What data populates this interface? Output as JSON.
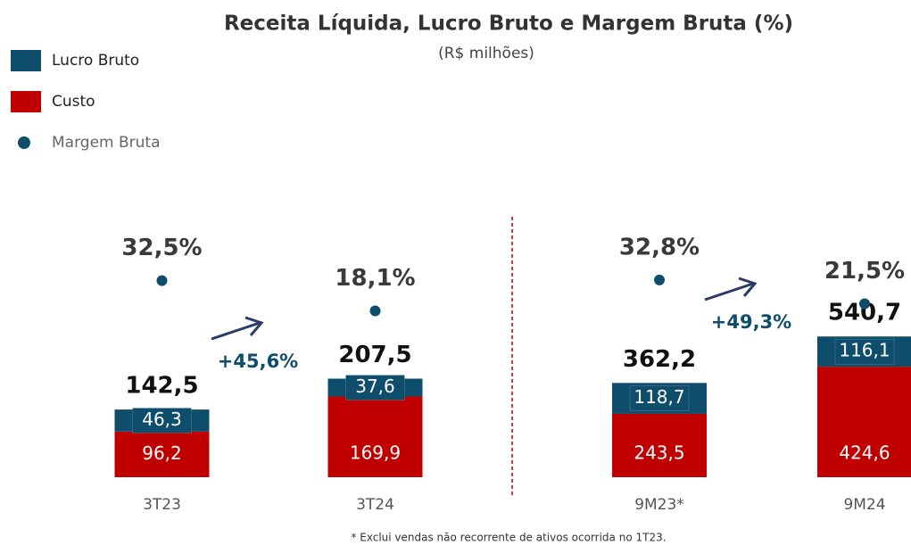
{
  "title": "Receita Líquida, Lucro Bruto e Margem Bruta (%)",
  "subtitle": "(R$ milhões)",
  "legend": [
    {
      "name": "Lucro Bruto",
      "color": "#0e4d6b"
    },
    {
      "name": "Custo",
      "color": "#c00000"
    },
    {
      "name": "Margem Bruta",
      "color": "#0e4d6b"
    }
  ],
  "footnote": "* Exclui vendas não recorrente de ativos ocorrida no 1T23.",
  "chart_data": [
    {
      "type": "bar",
      "categories": [
        "3T23",
        "3T24"
      ],
      "ylim": [
        0,
        400
      ],
      "y2lim": [
        0,
        40
      ],
      "series": [
        {
          "color": "#c00000",
          "values": [
            96.2,
            169.9
          ],
          "value_labels": [
            "96,2",
            "169,9"
          ]
        },
        {
          "color": "#0e4d6b",
          "values": [
            46.3,
            37.6
          ],
          "value_labels": [
            "46,3",
            "37,6"
          ]
        }
      ],
      "totals": {
        "values": [
          142.5,
          207.5
        ],
        "value_labels": [
          "142,5",
          "207,5"
        ]
      },
      "margin": {
        "axis": "y2",
        "color": "#0e4d6b",
        "values": [
          32.5,
          18.1
        ],
        "value_labels": [
          "32,5%",
          "18,1%"
        ]
      },
      "annotation": "+45,6%"
    },
    {
      "type": "bar",
      "categories": [
        "9M23*",
        "9M24"
      ],
      "ylim": [
        0,
        730
      ],
      "y2lim": [
        0,
        40
      ],
      "series": [
        {
          "color": "#c00000",
          "values": [
            243.5,
            424.6
          ],
          "value_labels": [
            "243,5",
            "424,6"
          ]
        },
        {
          "color": "#0e4d6b",
          "values": [
            118.7,
            116.1
          ],
          "value_labels": [
            "118,7",
            "116,1"
          ]
        }
      ],
      "totals": {
        "values": [
          362.2,
          540.7
        ],
        "value_labels": [
          "362,2",
          "540,7"
        ]
      },
      "margin": {
        "axis": "y2",
        "color": "#0e4d6b",
        "values": [
          32.8,
          21.5
        ],
        "value_labels": [
          "32,8%",
          "21,5%"
        ]
      },
      "annotation": "+49,3%"
    }
  ]
}
